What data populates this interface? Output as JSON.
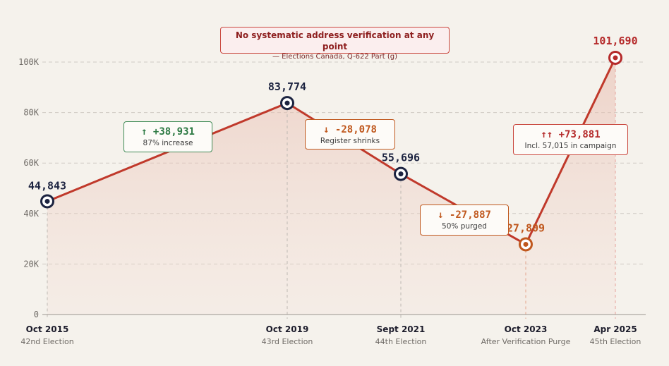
{
  "chart_data": {
    "type": "line",
    "title": "No systematic address verification at any point",
    "source": "— Elections Canada, Q-622 Part (g)",
    "y_ticks": [
      "0",
      "20K",
      "40K",
      "60K",
      "80K",
      "100K"
    ],
    "ylim": [
      0,
      100000
    ],
    "points": [
      {
        "date": "Oct 2015",
        "label": "42nd Election",
        "value": 44843,
        "value_label": "44,843"
      },
      {
        "date": "Oct 2019",
        "label": "43rd Election",
        "value": 83774,
        "value_label": "83,774"
      },
      {
        "date": "Sept 2021",
        "label": "44th Election",
        "value": 55696,
        "value_label": "55,696"
      },
      {
        "date": "Oct 2023",
        "label": "After Verification Purge",
        "value": 27809,
        "value_label": "27,809"
      },
      {
        "date": "Apr 2025",
        "label": "45th Election",
        "value": 101690,
        "value_label": "101,690"
      }
    ],
    "annotations": [
      {
        "change": "↑ +38,931",
        "note": "87% increase"
      },
      {
        "change": "↓ -28,078",
        "note": "Register shrinks"
      },
      {
        "change": "↓ -27,887",
        "note": "50% purged"
      },
      {
        "change": "↑↑ +73,881",
        "note": "Incl. 57,015 in campaign"
      }
    ]
  },
  "colors": {
    "line": "#c0392b",
    "navy": "#1c2340",
    "orange": "#c0581e",
    "green": "#2e7a44",
    "red": "#b52a2a"
  }
}
